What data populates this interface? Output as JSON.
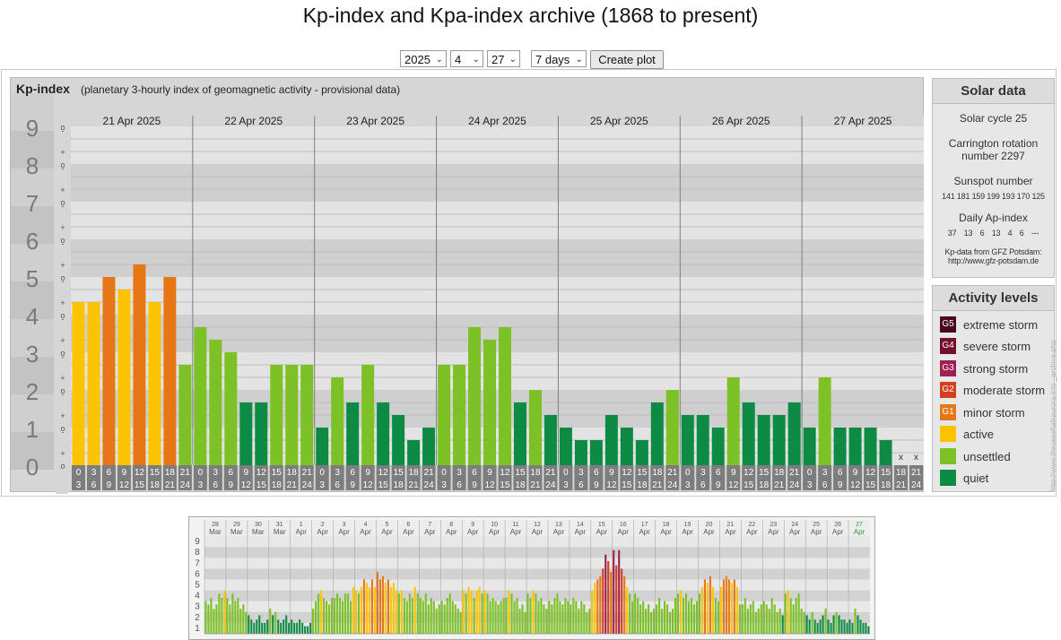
{
  "page_title": "Kp-index and Kpa-index archive (1868 to present)",
  "controls": {
    "year": "2025",
    "month": "4",
    "day": "27",
    "span": "7 days",
    "create_button": "Create plot"
  },
  "kp_panel": {
    "title": "Kp-index",
    "subtitle": "(planetary 3-hourly index of geomagnetic activity - provisional data)"
  },
  "chart_data": [
    {
      "type": "bar",
      "title": "Kp-index",
      "subtitle": "(planetary 3-hourly index of geomagnetic activity - provisional data)",
      "ylim": [
        0,
        9
      ],
      "y_ticks": [
        "0",
        "1",
        "2",
        "3",
        "4",
        "5",
        "6",
        "7",
        "8",
        "9"
      ],
      "minor_ticks": [
        "o",
        "+",
        "-"
      ],
      "days": [
        "21 Apr 2025",
        "22 Apr 2025",
        "23 Apr 2025",
        "24 Apr 2025",
        "25 Apr 2025",
        "26 Apr 2025",
        "27 Apr 2025"
      ],
      "interval_start": [
        "0",
        "3",
        "6",
        "9",
        "12",
        "15",
        "18",
        "21"
      ],
      "interval_end": [
        "3",
        "6",
        "9",
        "12",
        "15",
        "18",
        "21",
        "24"
      ],
      "missing_marker": "x",
      "values": [
        [
          4.333,
          4.333,
          5.0,
          4.667,
          5.333,
          4.333,
          5.0,
          2.667
        ],
        [
          3.667,
          3.333,
          3.0,
          1.667,
          1.667,
          2.667,
          2.667,
          2.667
        ],
        [
          1.0,
          2.333,
          1.667,
          2.667,
          1.667,
          1.333,
          0.667,
          1.0
        ],
        [
          2.667,
          2.667,
          3.667,
          3.333,
          3.667,
          1.667,
          2.0,
          1.333
        ],
        [
          1.0,
          0.667,
          0.667,
          1.333,
          1.0,
          0.667,
          1.667,
          2.0
        ],
        [
          1.333,
          1.333,
          1.0,
          2.333,
          1.667,
          1.333,
          1.333,
          1.667
        ],
        [
          1.0,
          2.333,
          1.0,
          1.0,
          1.0,
          0.667,
          null,
          null
        ]
      ],
      "colors": {
        "quiet": "#0d8a43",
        "unsettled": "#7cc125",
        "active": "#fcc400",
        "minor_storm": "#e67616",
        "moderate_storm": "#d2401d",
        "strong_storm": "#a01e52",
        "severe_storm": "#74102e",
        "extreme_storm": "#46081a"
      }
    },
    {
      "type": "bar",
      "ylim": [
        0,
        9
      ],
      "y_ticks": [
        "1",
        "2",
        "3",
        "4",
        "5",
        "6",
        "7",
        "8",
        "9"
      ],
      "day_numbers": [
        "28",
        "29",
        "30",
        "31",
        "1",
        "2",
        "3",
        "4",
        "5",
        "6",
        "7",
        "8",
        "9",
        "10",
        "11",
        "12",
        "13",
        "14",
        "15",
        "16",
        "17",
        "18",
        "19",
        "20",
        "21",
        "22",
        "23",
        "24",
        "25",
        "26",
        "27"
      ],
      "month_labels": [
        "Mar",
        "Mar",
        "Mar",
        "Mar",
        "Apr",
        "Apr",
        "Apr",
        "Apr",
        "Apr",
        "Apr",
        "Apr",
        "Apr",
        "Apr",
        "Apr",
        "Apr",
        "Apr",
        "Apr",
        "Apr",
        "Apr",
        "Apr",
        "Apr",
        "Apr",
        "Apr",
        "Apr",
        "Apr",
        "Apr",
        "Apr",
        "Apr",
        "Apr",
        "Apr",
        "Apr"
      ],
      "highlight_color": "#2a9a3a",
      "values": [
        [
          3.0,
          2.7,
          3.3,
          2.3,
          2.7,
          3.7,
          3.3,
          4.0
        ],
        [
          3.3,
          2.7,
          3.7,
          3.0,
          3.3,
          2.3,
          2.7,
          2.0
        ],
        [
          1.7,
          1.3,
          1.0,
          1.3,
          1.7,
          1.0,
          1.0,
          1.3
        ],
        [
          2.3,
          1.7,
          2.0,
          1.3,
          1.0,
          1.3,
          1.7,
          1.0
        ],
        [
          1.3,
          1.0,
          1.0,
          1.3,
          1.0,
          0.7,
          0.7,
          1.0
        ],
        [
          2.3,
          3.0,
          3.7,
          4.0,
          3.3,
          3.0,
          2.7,
          3.3
        ],
        [
          3.3,
          3.7,
          3.3,
          3.0,
          3.7,
          3.7,
          3.0,
          4.3
        ],
        [
          4.0,
          3.7,
          4.3,
          5.0,
          4.7,
          4.3,
          5.0,
          4.3
        ],
        [
          5.7,
          5.0,
          5.3,
          4.7,
          5.0,
          4.3,
          4.7,
          4.0
        ],
        [
          3.7,
          4.0,
          3.3,
          3.0,
          3.7,
          3.3,
          4.3,
          3.7
        ],
        [
          3.3,
          3.0,
          3.7,
          2.7,
          3.3,
          3.0,
          2.3,
          2.7
        ],
        [
          3.0,
          2.7,
          3.3,
          3.7,
          3.0,
          2.7,
          2.3,
          2.0
        ],
        [
          4.0,
          3.7,
          4.3,
          4.0,
          3.3,
          4.0,
          4.3,
          3.7
        ],
        [
          4.0,
          3.7,
          3.0,
          3.3,
          3.0,
          2.7,
          3.0,
          3.3
        ],
        [
          3.3,
          4.0,
          3.7,
          3.0,
          3.3,
          2.3,
          2.7,
          2.0
        ],
        [
          3.7,
          3.3,
          4.0,
          3.7,
          3.0,
          3.3,
          2.7,
          2.3
        ],
        [
          3.0,
          2.7,
          3.3,
          3.7,
          3.0,
          2.7,
          3.3,
          3.0
        ],
        [
          2.7,
          3.3,
          3.0,
          2.3,
          3.0,
          2.7,
          2.0,
          2.3
        ],
        [
          4.0,
          4.7,
          5.0,
          5.3,
          6.0,
          7.3,
          6.7,
          5.7
        ],
        [
          7.7,
          6.3,
          7.7,
          6.0,
          5.3,
          4.3,
          3.7,
          3.0
        ],
        [
          3.7,
          3.3,
          2.7,
          3.0,
          2.3,
          2.7,
          2.0,
          2.3
        ],
        [
          2.7,
          3.3,
          2.3,
          3.0,
          2.7,
          2.0,
          2.3,
          3.3
        ],
        [
          3.7,
          4.0,
          3.3,
          3.7,
          3.0,
          3.3,
          2.7,
          3.0
        ],
        [
          3.7,
          4.3,
          5.0,
          4.7,
          5.3,
          4.3,
          3.3,
          3.0
        ],
        [
          4.3,
          5.0,
          5.3,
          5.0,
          4.7,
          5.0,
          4.3,
          2.7
        ],
        [
          2.7,
          3.3,
          2.3,
          2.7,
          3.0,
          2.0,
          2.3,
          2.7
        ],
        [
          3.0,
          2.7,
          2.3,
          3.3,
          2.7,
          2.0,
          2.3,
          1.7
        ],
        [
          3.7,
          4.0,
          3.3,
          2.7,
          3.3,
          3.7,
          2.3,
          2.0
        ],
        [
          1.7,
          1.3,
          2.0,
          1.3,
          1.0,
          1.3,
          1.7,
          2.3
        ],
        [
          1.3,
          1.0,
          1.7,
          2.0,
          1.7,
          1.3,
          1.3,
          1.0
        ],
        [
          1.3,
          1.0,
          2.3,
          1.7,
          1.3,
          1.0,
          1.0,
          0.7
        ]
      ]
    }
  ],
  "solar": {
    "title": "Solar data",
    "cycle": "Solar cycle 25",
    "carrington_line1": "Carrington rotation",
    "carrington_line2": "number 2297",
    "sunspot_label": "Sunspot number",
    "sunspot_values": "141 181 159 199 193 170 125",
    "ap_label": "Daily Ap-index",
    "ap_values": "37  13  6  13  4  6  ---",
    "source_line1": "Kp-data from GFZ Potsdam:",
    "source_line2": "http://www.gfz-potsdam.de"
  },
  "activity": {
    "title": "Activity levels",
    "levels": [
      {
        "code": "G5",
        "label": "extreme storm",
        "color": "#46081a"
      },
      {
        "code": "G4",
        "label": "severe storm",
        "color": "#74102e"
      },
      {
        "code": "G3",
        "label": "strong storm",
        "color": "#a01e52"
      },
      {
        "code": "G2",
        "label": "moderate storm",
        "color": "#d2401d"
      },
      {
        "code": "G1",
        "label": "minor storm",
        "color": "#e67616"
      },
      {
        "code": "",
        "label": "active",
        "color": "#fcc400"
      },
      {
        "code": "",
        "label": "unsettled",
        "color": "#7cc125"
      },
      {
        "code": "",
        "label": "quiet",
        "color": "#0d8a43"
      }
    ]
  },
  "watermark": "http://www.theuseoftalkaurora.info _archive.php"
}
